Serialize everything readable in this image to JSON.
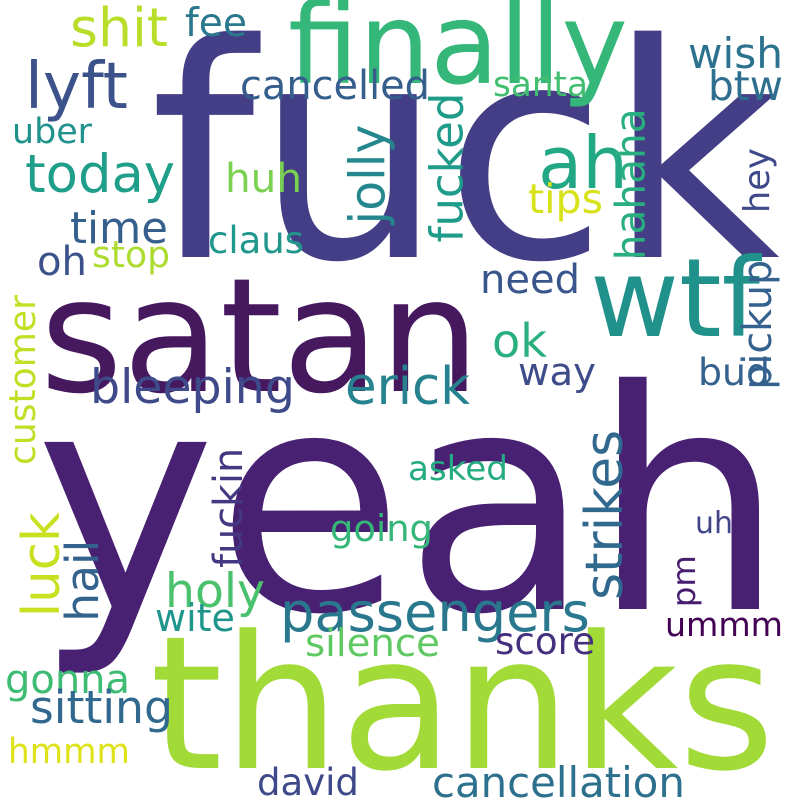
{
  "words": [
    {
      "text": "yeah",
      "color": "#482173",
      "vertical": false
    },
    {
      "text": "fuck",
      "color": "#433e85",
      "vertical": false
    },
    {
      "text": "thanks",
      "color": "#a2da37",
      "vertical": false
    },
    {
      "text": "satan",
      "color": "#46195f",
      "vertical": false
    },
    {
      "text": "finally",
      "color": "#35b779",
      "vertical": false
    },
    {
      "text": "wtf",
      "color": "#21918c",
      "vertical": false
    },
    {
      "text": "passengers",
      "color": "#2a788e",
      "vertical": false
    },
    {
      "text": "today",
      "color": "#1f9e89",
      "vertical": false
    },
    {
      "text": "ah",
      "color": "#22a884",
      "vertical": false
    },
    {
      "text": "bleeping",
      "color": "#3e4a89",
      "vertical": false
    },
    {
      "text": "erick",
      "color": "#26828e",
      "vertical": false
    },
    {
      "text": "strikes",
      "color": "#31688e",
      "vertical": true
    },
    {
      "text": "need",
      "color": "#39568c",
      "vertical": false
    },
    {
      "text": "ummm",
      "color": "#440154",
      "vertical": false
    },
    {
      "text": "gonna",
      "color": "#3fbc73",
      "vertical": false
    },
    {
      "text": "hmmm",
      "color": "#dde318",
      "vertical": false
    },
    {
      "text": "holy",
      "color": "#4ac16d",
      "vertical": false
    },
    {
      "text": "lyft",
      "color": "#3b528b",
      "vertical": false
    },
    {
      "text": "time",
      "color": "#355f8d",
      "vertical": false
    },
    {
      "text": "fucked",
      "color": "#1e9c89",
      "vertical": true
    },
    {
      "text": "hahaha",
      "color": "#29af7f",
      "vertical": true
    },
    {
      "text": "wish",
      "color": "#2c728e",
      "vertical": false
    },
    {
      "text": "btw",
      "color": "#2e6e8e",
      "vertical": false
    },
    {
      "text": "ok",
      "color": "#2ab07f",
      "vertical": false
    },
    {
      "text": "way",
      "color": "#3e4c8a",
      "vertical": false
    },
    {
      "text": "bud",
      "color": "#34618d",
      "vertical": false
    },
    {
      "text": "luck",
      "color": "#c8e020",
      "vertical": true
    },
    {
      "text": "shit",
      "color": "#b8de29",
      "vertical": false
    },
    {
      "text": "huh",
      "color": "#7ad151",
      "vertical": false
    },
    {
      "text": "cancelled",
      "color": "#355e8d",
      "vertical": false
    },
    {
      "text": "oh",
      "color": "#3b528b",
      "vertical": false
    },
    {
      "text": "sitting",
      "color": "#31688e",
      "vertical": false
    },
    {
      "text": "david",
      "color": "#3e4989",
      "vertical": false
    },
    {
      "text": "cancellation",
      "color": "#2d708e",
      "vertical": false
    },
    {
      "text": "silence",
      "color": "#5ec962",
      "vertical": false
    },
    {
      "text": "score",
      "color": "#46307e",
      "vertical": false
    },
    {
      "text": "uh",
      "color": "#404688",
      "vertical": false
    },
    {
      "text": "pm",
      "color": "#481d6f",
      "vertical": true
    },
    {
      "text": "going",
      "color": "#35b779",
      "vertical": false
    },
    {
      "text": "asked",
      "color": "#25ab82",
      "vertical": false
    },
    {
      "text": "customer",
      "color": "#c0df25",
      "vertical": true
    },
    {
      "text": "fee",
      "color": "#2a788e",
      "vertical": false
    },
    {
      "text": "santa",
      "color": "#42be71",
      "vertical": false
    },
    {
      "text": "uber",
      "color": "#20928c",
      "vertical": false
    },
    {
      "text": "jolly",
      "color": "#24878e",
      "vertical": true
    },
    {
      "text": "tips",
      "color": "#d8e219",
      "vertical": false
    },
    {
      "text": "hey",
      "color": "#3e4989",
      "vertical": true
    },
    {
      "text": "claus",
      "color": "#1f978b",
      "vertical": false
    },
    {
      "text": "stop",
      "color": "#addc30",
      "vertical": false
    },
    {
      "text": "pickup",
      "color": "#34618d",
      "vertical": true
    },
    {
      "text": "fuckin",
      "color": "#453781",
      "vertical": true
    },
    {
      "text": "hail",
      "color": "#33638d",
      "vertical": true
    },
    {
      "text": "wite",
      "color": "#1f968b",
      "vertical": false
    }
  ]
}
